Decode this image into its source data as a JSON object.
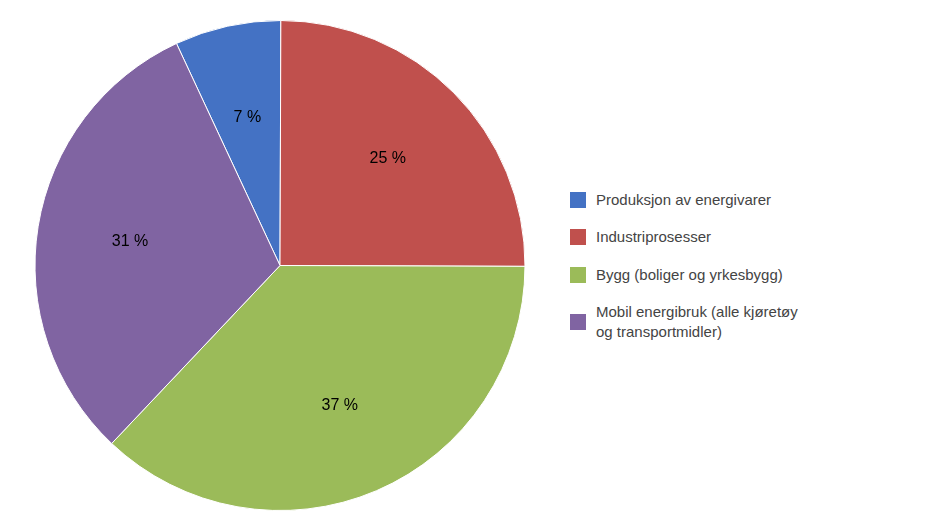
{
  "chart_data": {
    "type": "pie",
    "categories": [
      "Produksjon av energivarer",
      "Industriprosesser",
      "Bygg (boliger og yrkesbygg)",
      "Mobil energibruk (alle kjøretøy\nog transportmidler)"
    ],
    "values": [
      7,
      25,
      37,
      31
    ],
    "value_labels": [
      "7 %",
      "25 %",
      "37 %",
      "31 %"
    ],
    "colors": [
      "#4472C4",
      "#C0504D",
      "#9BBB59",
      "#8064A2"
    ],
    "data_labels": true,
    "legend": "right"
  }
}
